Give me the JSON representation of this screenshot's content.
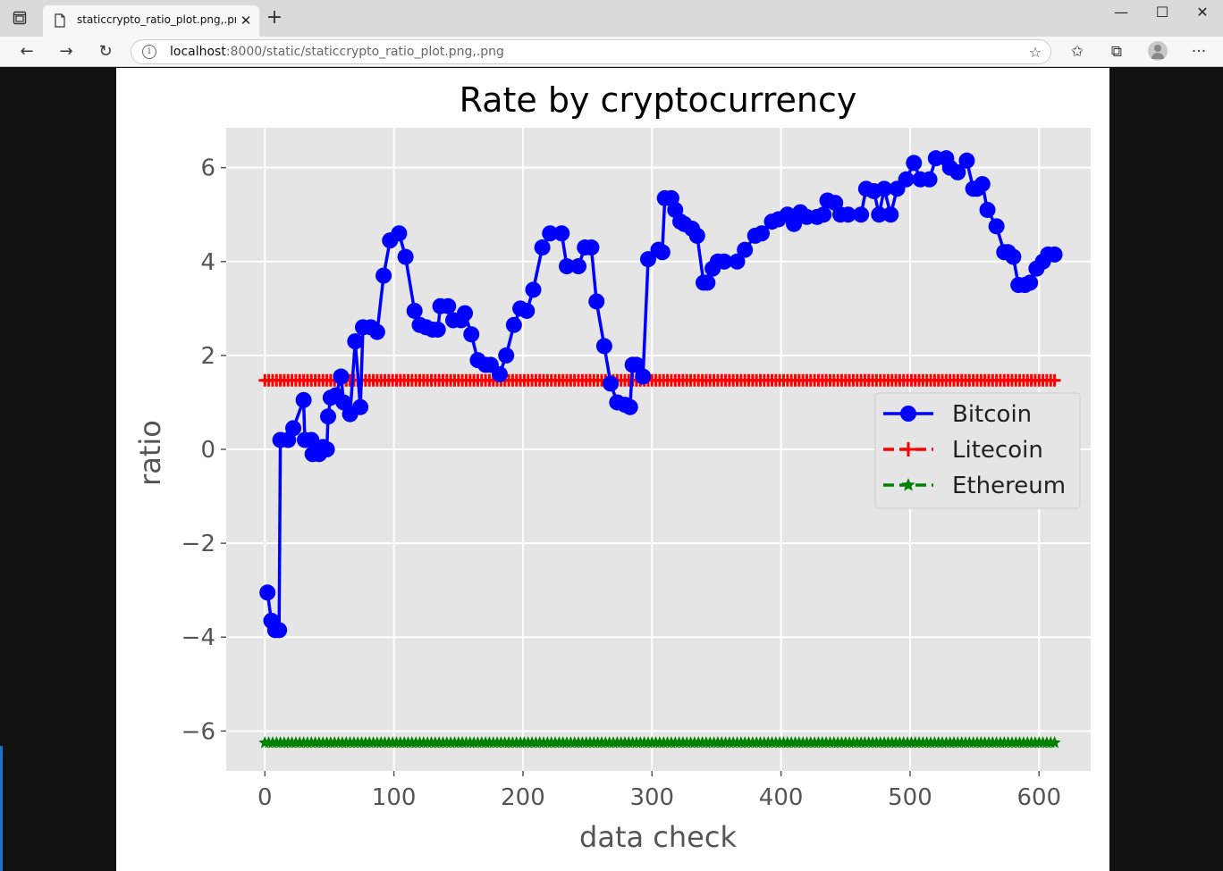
{
  "browser": {
    "tab_title": "staticcrypto_ratio_plot.png,.png",
    "tab_close_glyph": "✕",
    "new_tab_glyph": "+",
    "url_host": "localhost",
    "url_path": ":8000/static/staticcrypto_ratio_plot.png,.png",
    "info_glyph": "i",
    "more_glyph": "···",
    "icons": {
      "window": "window-menu-icon",
      "back": "back-arrow-icon",
      "forward": "forward-arrow-icon",
      "refresh": "refresh-icon",
      "favorite_add": "star-add-icon",
      "favorites": "favorites-icon",
      "collections": "collections-icon",
      "profile": "profile-avatar-icon"
    }
  },
  "chart_data": {
    "type": "line",
    "title": "Rate by cryptocurrency",
    "xlabel": "data check",
    "ylabel": "ratio",
    "xlim": [
      -30,
      640
    ],
    "ylim": [
      -6.85,
      6.85
    ],
    "xticks": [
      0,
      100,
      200,
      300,
      400,
      500,
      600
    ],
    "yticks": [
      -6,
      -4,
      -2,
      0,
      2,
      4,
      6
    ],
    "ytick_labels": [
      "−6",
      "−4",
      "−2",
      "0",
      "2",
      "4",
      "6"
    ],
    "grid": true,
    "legend_position": "center-right",
    "background": "#e5e5e5",
    "series": [
      {
        "name": "Bitcoin",
        "color": "#0000ff",
        "marker": "circle",
        "linestyle": "solid",
        "points": [
          [
            2,
            -3.05
          ],
          [
            5,
            -3.65
          ],
          [
            8,
            -3.85
          ],
          [
            11,
            -3.85
          ],
          [
            12,
            0.2
          ],
          [
            18,
            0.2
          ],
          [
            22,
            0.45
          ],
          [
            30,
            1.05
          ],
          [
            31,
            0.2
          ],
          [
            36,
            0.2
          ],
          [
            37,
            -0.1
          ],
          [
            42,
            -0.1
          ],
          [
            45,
            0.05
          ],
          [
            48,
            0.0
          ],
          [
            49,
            0.7
          ],
          [
            51,
            1.1
          ],
          [
            55,
            1.15
          ],
          [
            59,
            1.55
          ],
          [
            61,
            1.0
          ],
          [
            66,
            0.75
          ],
          [
            70,
            2.3
          ],
          [
            74,
            0.9
          ],
          [
            76,
            2.6
          ],
          [
            82,
            2.6
          ],
          [
            87,
            2.5
          ],
          [
            92,
            3.7
          ],
          [
            97,
            4.45
          ],
          [
            104,
            4.6
          ],
          [
            109,
            4.1
          ],
          [
            116,
            2.95
          ],
          [
            120,
            2.65
          ],
          [
            125,
            2.6
          ],
          [
            130,
            2.55
          ],
          [
            134,
            2.55
          ],
          [
            136,
            3.05
          ],
          [
            142,
            3.05
          ],
          [
            146,
            2.75
          ],
          [
            152,
            2.75
          ],
          [
            155,
            2.9
          ],
          [
            160,
            2.45
          ],
          [
            165,
            1.9
          ],
          [
            171,
            1.8
          ],
          [
            175,
            1.8
          ],
          [
            182,
            1.6
          ],
          [
            187,
            2.0
          ],
          [
            193,
            2.65
          ],
          [
            198,
            3.0
          ],
          [
            203,
            2.95
          ],
          [
            208,
            3.4
          ],
          [
            215,
            4.3
          ],
          [
            221,
            4.6
          ],
          [
            230,
            4.6
          ],
          [
            234,
            3.9
          ],
          [
            243,
            3.9
          ],
          [
            248,
            4.3
          ],
          [
            253,
            4.3
          ],
          [
            257,
            3.15
          ],
          [
            263,
            2.2
          ],
          [
            268,
            1.4
          ],
          [
            273,
            1.0
          ],
          [
            279,
            0.95
          ],
          [
            283,
            0.9
          ],
          [
            285,
            1.8
          ],
          [
            288,
            1.8
          ],
          [
            293,
            1.55
          ],
          [
            297,
            4.05
          ],
          [
            305,
            4.25
          ],
          [
            308,
            4.2
          ],
          [
            310,
            5.35
          ],
          [
            315,
            5.35
          ],
          [
            318,
            5.1
          ],
          [
            322,
            4.85
          ],
          [
            325,
            4.8
          ],
          [
            331,
            4.7
          ],
          [
            335,
            4.55
          ],
          [
            340,
            3.55
          ],
          [
            343,
            3.55
          ],
          [
            347,
            3.85
          ],
          [
            351,
            4.0
          ],
          [
            356,
            4.0
          ],
          [
            366,
            4.0
          ],
          [
            372,
            4.25
          ],
          [
            380,
            4.55
          ],
          [
            385,
            4.6
          ],
          [
            393,
            4.85
          ],
          [
            398,
            4.9
          ],
          [
            405,
            5.0
          ],
          [
            410,
            4.8
          ],
          [
            415,
            5.05
          ],
          [
            420,
            4.95
          ],
          [
            428,
            4.95
          ],
          [
            433,
            5.0
          ],
          [
            436,
            5.3
          ],
          [
            442,
            5.25
          ],
          [
            446,
            5.0
          ],
          [
            452,
            5.0
          ],
          [
            462,
            5.0
          ],
          [
            466,
            5.55
          ],
          [
            472,
            5.5
          ],
          [
            476,
            5.0
          ],
          [
            480,
            5.55
          ],
          [
            485,
            5.0
          ],
          [
            490,
            5.55
          ],
          [
            497,
            5.75
          ],
          [
            503,
            6.1
          ],
          [
            508,
            5.75
          ],
          [
            515,
            5.75
          ],
          [
            520,
            6.2
          ],
          [
            528,
            6.2
          ],
          [
            531,
            6.0
          ],
          [
            537,
            5.9
          ],
          [
            544,
            6.15
          ],
          [
            549,
            5.55
          ],
          [
            552,
            5.55
          ],
          [
            556,
            5.65
          ],
          [
            560,
            5.1
          ],
          [
            567,
            4.75
          ],
          [
            573,
            4.2
          ],
          [
            576,
            4.2
          ],
          [
            580,
            4.1
          ],
          [
            584,
            3.5
          ],
          [
            589,
            3.5
          ],
          [
            593,
            3.55
          ],
          [
            598,
            3.85
          ],
          [
            603,
            4.0
          ],
          [
            607,
            4.15
          ],
          [
            612,
            4.15
          ]
        ]
      },
      {
        "name": "Litecoin",
        "color": "#ff0000",
        "marker": "plus",
        "linestyle": "dashed",
        "x_start": 0,
        "x_end": 612,
        "x_step": 3,
        "value": 1.47
      },
      {
        "name": "Ethereum",
        "color": "#008000",
        "marker": "star",
        "linestyle": "dashed",
        "x_start": 0,
        "x_end": 612,
        "x_step": 3,
        "value": -6.25
      }
    ]
  }
}
